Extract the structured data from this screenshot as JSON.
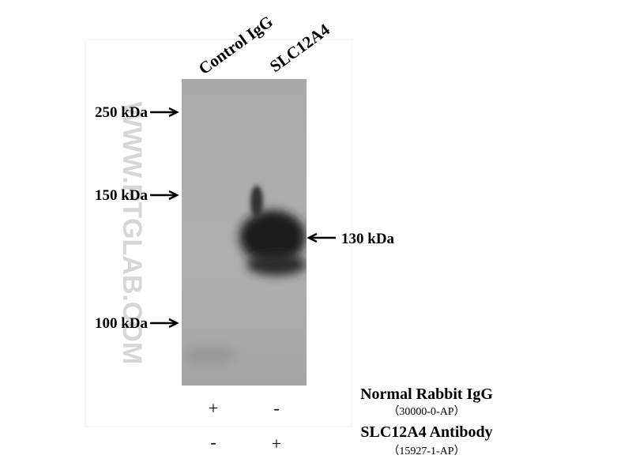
{
  "lanes": [
    "Control IgG",
    "SLC12A4"
  ],
  "markers": [
    "250 kDa",
    "150 kDa",
    "100 kDa"
  ],
  "band_label": "130 kDa",
  "watermark": "WWW.PTGLAB.COM",
  "conditions": [
    {
      "reagent": "Normal Rabbit IgG",
      "catalog": "（30000-0-AP）",
      "lanes": [
        "+",
        "-"
      ]
    },
    {
      "reagent": "SLC12A4 Antibody",
      "catalog": "（15927-1-AP）",
      "lanes": [
        "-",
        "+"
      ]
    }
  ]
}
